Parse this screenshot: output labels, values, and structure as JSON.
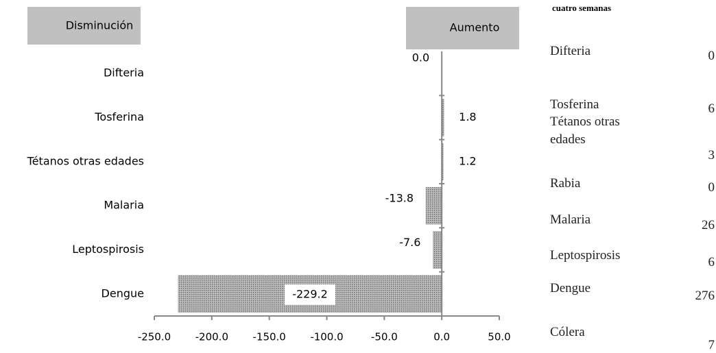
{
  "chart_data": {
    "type": "hbar",
    "annotations": [
      "Disminución",
      "Aumento"
    ],
    "categories": [
      "Difteria",
      "Tosferina",
      "Tétanos otras edades",
      "Malaria",
      "Leptospirosis",
      "Dengue"
    ],
    "values": [
      0,
      1.8,
      1.2,
      -13.8,
      -7.6,
      -229.2
    ],
    "value_labels": [
      "0.0",
      "1.8",
      "1.2",
      "-13.8",
      "-7.6",
      "-229.2"
    ],
    "color": "#9a9a9a",
    "xlim": [
      -250,
      50
    ],
    "xticks": [
      {
        "value": -250,
        "label": "-250.0"
      },
      {
        "value": -200,
        "label": "-200.0"
      },
      {
        "value": -150,
        "label": "-150.0"
      },
      {
        "value": -100,
        "label": "-100.0"
      },
      {
        "value": -50,
        "label": "-50.0"
      },
      {
        "value": 0,
        "label": "0.0"
      },
      {
        "value": 50,
        "label": "50.0"
      }
    ]
  },
  "side_table": {
    "title": "cuatro semanas",
    "rows": [
      [
        "Difteria",
        "0"
      ],
      [
        "Tosferina",
        "6"
      ],
      [
        "Tétanos otras edades",
        "3"
      ],
      [
        "Rabia",
        "0"
      ],
      [
        "Malaria",
        "26"
      ],
      [
        "Leptospirosis",
        "6"
      ],
      [
        "Dengue",
        "276"
      ],
      [
        "Cólera",
        "7"
      ]
    ]
  }
}
